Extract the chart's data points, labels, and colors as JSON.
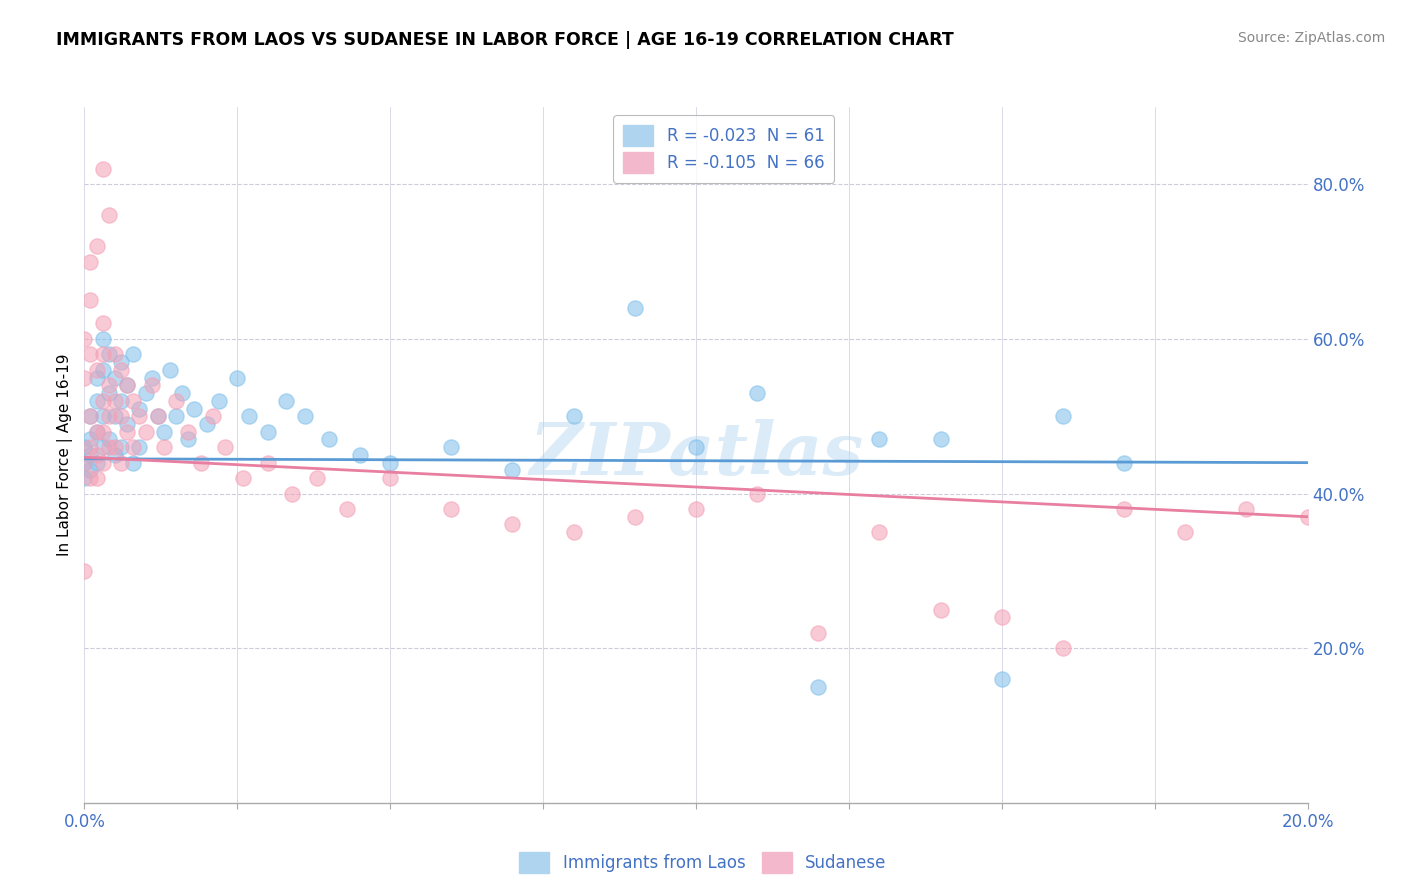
{
  "title": "IMMIGRANTS FROM LAOS VS SUDANESE IN LABOR FORCE | AGE 16-19 CORRELATION CHART",
  "source": "Source: ZipAtlas.com",
  "ylabel": "In Labor Force | Age 16-19",
  "xlim": [
    0.0,
    0.2
  ],
  "ylim": [
    0.0,
    0.9
  ],
  "legend_entry1": "R = -0.023  N = 61",
  "legend_entry2": "R = -0.105  N = 66",
  "color_blue": "#7fbfea",
  "color_pink": "#f4a0b5",
  "color_text_blue": "#4472c4",
  "background_color": "#ffffff",
  "grid_color": "#ccccdd",
  "watermark": "ZIPatlas",
  "laos_x": [
    0.0,
    0.0,
    0.0,
    0.001,
    0.001,
    0.001,
    0.001,
    0.002,
    0.002,
    0.002,
    0.002,
    0.003,
    0.003,
    0.003,
    0.003,
    0.004,
    0.004,
    0.004,
    0.005,
    0.005,
    0.005,
    0.006,
    0.006,
    0.006,
    0.007,
    0.007,
    0.008,
    0.008,
    0.009,
    0.009,
    0.01,
    0.011,
    0.012,
    0.013,
    0.014,
    0.015,
    0.016,
    0.017,
    0.018,
    0.02,
    0.022,
    0.025,
    0.027,
    0.03,
    0.033,
    0.036,
    0.04,
    0.045,
    0.05,
    0.06,
    0.07,
    0.08,
    0.09,
    0.1,
    0.11,
    0.12,
    0.13,
    0.14,
    0.15,
    0.16,
    0.17
  ],
  "laos_y": [
    0.44,
    0.42,
    0.46,
    0.5,
    0.47,
    0.43,
    0.45,
    0.55,
    0.52,
    0.48,
    0.44,
    0.6,
    0.56,
    0.5,
    0.46,
    0.53,
    0.58,
    0.47,
    0.55,
    0.5,
    0.45,
    0.57,
    0.52,
    0.46,
    0.54,
    0.49,
    0.58,
    0.44,
    0.51,
    0.46,
    0.53,
    0.55,
    0.5,
    0.48,
    0.56,
    0.5,
    0.53,
    0.47,
    0.51,
    0.49,
    0.52,
    0.55,
    0.5,
    0.48,
    0.52,
    0.5,
    0.47,
    0.45,
    0.44,
    0.46,
    0.43,
    0.5,
    0.64,
    0.46,
    0.53,
    0.15,
    0.47,
    0.47,
    0.16,
    0.5,
    0.44
  ],
  "sudanese_x": [
    0.0,
    0.0,
    0.0,
    0.001,
    0.001,
    0.001,
    0.001,
    0.001,
    0.002,
    0.002,
    0.002,
    0.002,
    0.003,
    0.003,
    0.003,
    0.003,
    0.003,
    0.004,
    0.004,
    0.004,
    0.005,
    0.005,
    0.005,
    0.006,
    0.006,
    0.006,
    0.007,
    0.007,
    0.008,
    0.008,
    0.009,
    0.01,
    0.011,
    0.012,
    0.013,
    0.015,
    0.017,
    0.019,
    0.021,
    0.023,
    0.026,
    0.03,
    0.034,
    0.038,
    0.043,
    0.05,
    0.06,
    0.07,
    0.08,
    0.09,
    0.1,
    0.11,
    0.12,
    0.13,
    0.14,
    0.15,
    0.16,
    0.17,
    0.18,
    0.19,
    0.2,
    0.003,
    0.004,
    0.002,
    0.001,
    0.0
  ],
  "sudanese_y": [
    0.44,
    0.55,
    0.6,
    0.65,
    0.58,
    0.5,
    0.46,
    0.42,
    0.56,
    0.48,
    0.45,
    0.42,
    0.62,
    0.58,
    0.52,
    0.48,
    0.44,
    0.54,
    0.5,
    0.46,
    0.58,
    0.52,
    0.46,
    0.56,
    0.5,
    0.44,
    0.54,
    0.48,
    0.52,
    0.46,
    0.5,
    0.48,
    0.54,
    0.5,
    0.46,
    0.52,
    0.48,
    0.44,
    0.5,
    0.46,
    0.42,
    0.44,
    0.4,
    0.42,
    0.38,
    0.42,
    0.38,
    0.36,
    0.35,
    0.37,
    0.38,
    0.4,
    0.22,
    0.35,
    0.25,
    0.24,
    0.2,
    0.38,
    0.35,
    0.38,
    0.37,
    0.82,
    0.76,
    0.72,
    0.7,
    0.3
  ]
}
